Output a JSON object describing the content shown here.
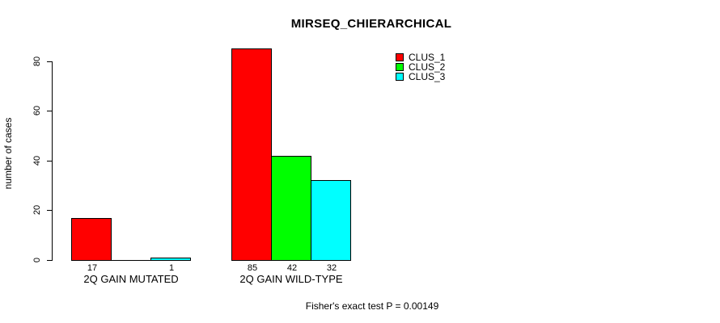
{
  "chart_data": {
    "type": "bar",
    "title": "MIRSEQ_CHIERARCHICAL",
    "xlabel": "",
    "ylabel": "number of cases",
    "categories": [
      "2Q GAIN MUTATED",
      "2Q GAIN WILD-TYPE"
    ],
    "series": [
      {
        "name": "CLUS_1",
        "color": "#ff0000",
        "values": [
          17,
          85
        ]
      },
      {
        "name": "CLUS_2",
        "color": "#00ff00",
        "values": [
          0,
          42
        ]
      },
      {
        "name": "CLUS_3",
        "color": "#00ffff",
        "values": [
          1,
          32
        ]
      }
    ],
    "bar_value_labels": [
      [
        17,
        null,
        1
      ],
      [
        85,
        42,
        32
      ]
    ],
    "yticks": [
      0,
      20,
      40,
      60,
      80
    ],
    "ylim": [
      0,
      85
    ],
    "grid": false,
    "legend_position": "top-right",
    "legend_entries": [
      "CLUS_1",
      "CLUS_2",
      "CLUS_3"
    ],
    "bar_border_color": "#000000",
    "background_color": "#ffffff"
  },
  "footer": {
    "note": "Fisher's exact test P = 0.00149"
  }
}
